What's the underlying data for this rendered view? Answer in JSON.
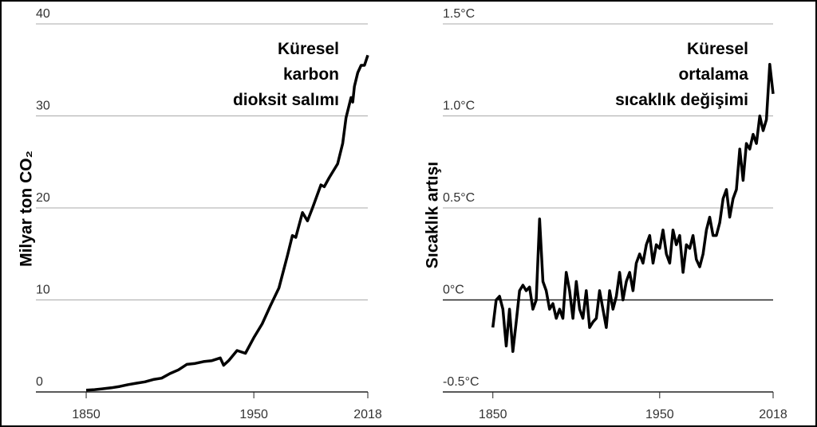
{
  "chart_data": [
    {
      "type": "line",
      "y_label": "Milyar ton CO₂",
      "annotation": [
        "Küresel",
        "karbon",
        "dioksit salımı"
      ],
      "x": [
        1850,
        1855,
        1860,
        1865,
        1870,
        1875,
        1880,
        1885,
        1890,
        1895,
        1900,
        1905,
        1910,
        1915,
        1920,
        1925,
        1930,
        1932,
        1935,
        1940,
        1945,
        1950,
        1955,
        1960,
        1965,
        1970,
        1973,
        1975,
        1979,
        1982,
        1985,
        1990,
        1992,
        1995,
        2000,
        2003,
        2005,
        2008,
        2009,
        2010,
        2012,
        2014,
        2016,
        2018
      ],
      "series": [
        {
          "color": "#000000",
          "values": [
            0.2,
            0.25,
            0.35,
            0.45,
            0.6,
            0.8,
            0.95,
            1.1,
            1.35,
            1.5,
            2.0,
            2.4,
            3.0,
            3.1,
            3.3,
            3.4,
            3.7,
            2.9,
            3.4,
            4.5,
            4.2,
            5.9,
            7.4,
            9.4,
            11.3,
            14.8,
            17.0,
            16.8,
            19.5,
            18.6,
            20.0,
            22.5,
            22.3,
            23.3,
            24.8,
            27.0,
            29.8,
            32.0,
            31.5,
            33.2,
            34.7,
            35.5,
            35.5,
            36.6
          ]
        }
      ],
      "xlim": [
        1820,
        2018
      ],
      "xticks": [
        1850,
        1950,
        2018
      ],
      "ylim": [
        0,
        40
      ],
      "yticks": [
        0,
        10,
        20,
        30,
        40
      ],
      "grid": true
    },
    {
      "type": "line",
      "y_label": "Sıcaklık artışı",
      "annotation": [
        "Küresel",
        "ortalama",
        "sıcaklık değişimi"
      ],
      "x": [
        1850,
        1852,
        1854,
        1856,
        1858,
        1860,
        1862,
        1864,
        1866,
        1868,
        1870,
        1872,
        1874,
        1876,
        1878,
        1880,
        1882,
        1884,
        1886,
        1888,
        1890,
        1892,
        1894,
        1896,
        1898,
        1900,
        1902,
        1904,
        1906,
        1908,
        1910,
        1912,
        1914,
        1916,
        1918,
        1920,
        1922,
        1924,
        1926,
        1928,
        1930,
        1932,
        1934,
        1936,
        1938,
        1940,
        1942,
        1944,
        1946,
        1948,
        1950,
        1952,
        1954,
        1956,
        1958,
        1960,
        1962,
        1964,
        1966,
        1968,
        1970,
        1972,
        1974,
        1976,
        1978,
        1980,
        1982,
        1984,
        1986,
        1988,
        1990,
        1992,
        1994,
        1996,
        1998,
        2000,
        2002,
        2004,
        2006,
        2008,
        2010,
        2012,
        2014,
        2016,
        2018
      ],
      "series": [
        {
          "color": "#000000",
          "values": [
            -0.15,
            0.0,
            0.02,
            -0.05,
            -0.25,
            -0.05,
            -0.28,
            -0.12,
            0.05,
            0.08,
            0.05,
            0.07,
            -0.05,
            0.0,
            0.44,
            0.1,
            0.05,
            -0.05,
            -0.02,
            -0.1,
            -0.05,
            -0.1,
            0.15,
            0.05,
            -0.1,
            0.1,
            -0.05,
            -0.1,
            0.05,
            -0.15,
            -0.12,
            -0.1,
            0.05,
            -0.05,
            -0.15,
            0.05,
            -0.05,
            0.02,
            0.15,
            0.0,
            0.1,
            0.15,
            0.05,
            0.2,
            0.25,
            0.2,
            0.3,
            0.35,
            0.2,
            0.3,
            0.28,
            0.38,
            0.25,
            0.2,
            0.38,
            0.3,
            0.35,
            0.15,
            0.3,
            0.28,
            0.35,
            0.22,
            0.18,
            0.25,
            0.38,
            0.45,
            0.35,
            0.35,
            0.42,
            0.55,
            0.6,
            0.45,
            0.55,
            0.6,
            0.82,
            0.65,
            0.85,
            0.82,
            0.9,
            0.85,
            1.0,
            0.92,
            0.98,
            1.28,
            1.12
          ]
        }
      ],
      "xlim": [
        1820,
        2018
      ],
      "xticks": [
        1850,
        1950,
        2018
      ],
      "ylim": [
        -0.5,
        1.5
      ],
      "yticks": [
        {
          "value": -0.5,
          "label": "-0.5°C"
        },
        {
          "value": 0,
          "label": "0°C"
        },
        {
          "value": 0.5,
          "label": "0.5°C"
        },
        {
          "value": 1.0,
          "label": "1.0°C"
        },
        {
          "value": 1.5,
          "label": "1.5°C"
        }
      ],
      "grid": true
    }
  ]
}
